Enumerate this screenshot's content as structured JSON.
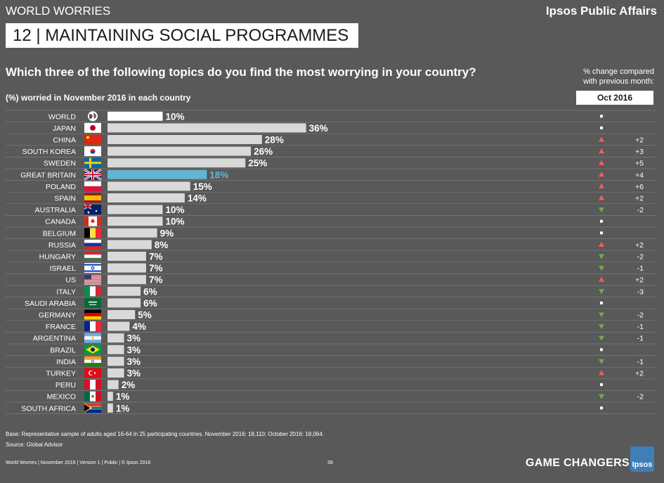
{
  "header": {
    "section": "WORLD WORRIES",
    "brand": "Ipsos Public Affairs",
    "title": "12 | MAINTAINING SOCIAL PROGRAMMES",
    "question": "Which three of the following topics do you find the most worrying in your country?",
    "change_note_line1": "% change compared",
    "change_note_line2": "with previous month:",
    "subtitle": "(%) worried in November 2016 in each country",
    "comparison_period": "Oct 2016"
  },
  "footer": {
    "base": "Base: Representative sample of adults aged 16-64 in 25 participating countries. November 2016: 18,110; October 2016: 18,064.",
    "source": "Source: Global Advisor",
    "left": "World Worries | November 2016 | Version 1 | Public | © Ipsos 2016",
    "page": "39",
    "tagline": "GAME CHANGERS",
    "logo": "Ipsos"
  },
  "colors": {
    "background": "#595959",
    "bar": "#d9d9d9",
    "world_bar": "#ffffff",
    "highlight_bar": "#62b5d3",
    "up": "#ff5a5a",
    "down": "#70ad47"
  },
  "chart_data": {
    "type": "bar",
    "orientation": "horizontal",
    "unit": "%",
    "highlight": "GREAT BRITAIN",
    "categories": [
      "WORLD",
      "JAPAN",
      "CHINA",
      "SOUTH KOREA",
      "SWEDEN",
      "GREAT BRITAIN",
      "POLAND",
      "SPAIN",
      "AUSTRALIA",
      "CANADA",
      "BELGIUM",
      "RUSSIA",
      "HUNGARY",
      "ISRAEL",
      "US",
      "ITALY",
      "SAUDI ARABIA",
      "GERMANY",
      "FRANCE",
      "ARGENTINA",
      "BRAZIL",
      "INDIA",
      "TURKEY",
      "PERU",
      "MEXICO",
      "SOUTH AFRICA"
    ],
    "values": [
      10,
      36,
      28,
      26,
      25,
      18,
      15,
      14,
      10,
      10,
      9,
      8,
      7,
      7,
      7,
      6,
      6,
      5,
      4,
      3,
      3,
      3,
      3,
      2,
      1,
      1
    ],
    "changes": [
      {
        "dir": "same",
        "label": ""
      },
      {
        "dir": "same",
        "label": ""
      },
      {
        "dir": "up",
        "label": "+2"
      },
      {
        "dir": "up",
        "label": "+3"
      },
      {
        "dir": "up",
        "label": "+5"
      },
      {
        "dir": "up",
        "label": "+4"
      },
      {
        "dir": "up",
        "label": "+6"
      },
      {
        "dir": "up",
        "label": "+2"
      },
      {
        "dir": "down",
        "label": "-2"
      },
      {
        "dir": "same",
        "label": ""
      },
      {
        "dir": "same",
        "label": ""
      },
      {
        "dir": "up",
        "label": "+2"
      },
      {
        "dir": "down",
        "label": "-2"
      },
      {
        "dir": "down",
        "label": "-1"
      },
      {
        "dir": "up",
        "label": "+2"
      },
      {
        "dir": "down",
        "label": "-3"
      },
      {
        "dir": "same",
        "label": ""
      },
      {
        "dir": "down",
        "label": "-2"
      },
      {
        "dir": "down",
        "label": "-1"
      },
      {
        "dir": "down",
        "label": "-1"
      },
      {
        "dir": "same",
        "label": ""
      },
      {
        "dir": "down",
        "label": "-1"
      },
      {
        "dir": "up",
        "label": "+2"
      },
      {
        "dir": "same",
        "label": ""
      },
      {
        "dir": "down",
        "label": "-2"
      },
      {
        "dir": "same",
        "label": ""
      }
    ],
    "flags": [
      "globe",
      "japan",
      "china",
      "south-korea",
      "sweden",
      "great-britain",
      "poland",
      "spain",
      "australia",
      "canada",
      "belgium",
      "russia",
      "hungary",
      "israel",
      "us",
      "italy",
      "saudi-arabia",
      "germany",
      "france",
      "argentina",
      "brazil",
      "india",
      "turkey",
      "peru",
      "mexico",
      "south-africa"
    ]
  }
}
